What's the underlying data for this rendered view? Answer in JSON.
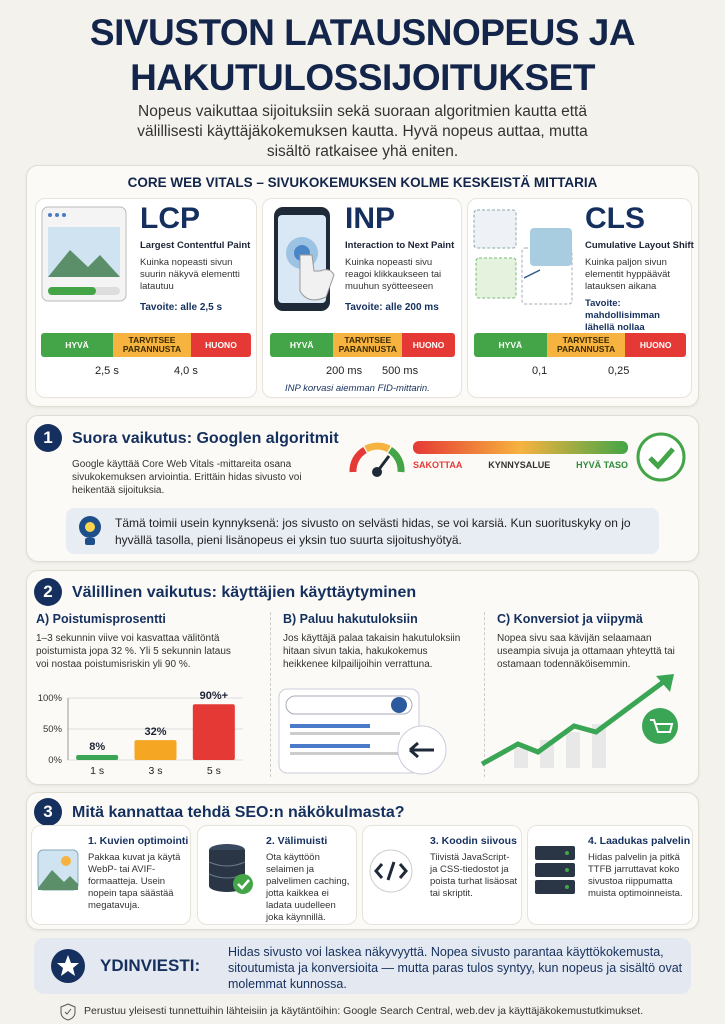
{
  "header": {
    "title": "SIVUSTON LATAUSNOPEUS JA HAKUTULOSSIJOITUKSET",
    "subtitle": "Nopeus vaikuttaa sijoituksiin sekä suoraan algoritmien kautta että välillisesti käyttäjäkokemuksen kautta. Hyvä nopeus auttaa, mutta sisältö ratkaisee yhä eniten."
  },
  "core_web_vitals": {
    "heading": "CORE WEB VITALS – SIVUKOKEMUKSEN KOLME KESKEISTÄ MITTARIA",
    "scale_labels": [
      "HYVÄ",
      "TARVITSEE PARANNUSTA",
      "HUONO"
    ],
    "metrics": [
      {
        "acronym": "LCP",
        "name": "Largest Contentful Paint",
        "description": "Kuinka nopeasti sivun suurin näkyvä elementti latautuu",
        "target": "Tavoite: alle 2,5 s",
        "thresholds": [
          "2,5 s",
          "4,0 s"
        ]
      },
      {
        "acronym": "INP",
        "name": "Interaction to Next Paint",
        "description": "Kuinka nopeasti sivu reagoi klikkaukseen tai muuhun syötteeseen",
        "target": "Tavoite: alle 200 ms",
        "thresholds": [
          "200 ms",
          "500 ms"
        ],
        "note": "INP korvasi aiemman FID-mittarin."
      },
      {
        "acronym": "CLS",
        "name": "Cumulative Layout Shift",
        "description": "Kuinka paljon sivun elementit hyppäävät latauksen aikana",
        "target": "Tavoite: mahdollisimman lähellä nollaa",
        "thresholds": [
          "0,1",
          "0,25"
        ]
      }
    ]
  },
  "direct_impact": {
    "number": "1",
    "heading": "Suora vaikutus: Googlen algoritmit",
    "text": "Google käyttää Core Web Vitals -mittareita osana sivukokemuksen arviointia. Erittäin hidas sivusto voi heikentää sijoituksia.",
    "scale_labels": [
      "SAKOTTAA",
      "KYNNYSALUE",
      "HYVÄ TASO"
    ],
    "tip": "Tämä toimii usein kynnyksenä: jos sivusto on selvästi hidas, se voi karsiä. Kun suorituskyky on jo hyvällä tasolla, pieni lisänopeus ei yksin tuo suurta sijoitushyötyä."
  },
  "indirect_impact": {
    "number": "2",
    "heading": "Välillinen vaikutus: käyttäjien käyttäytyminen",
    "columns": [
      {
        "title": "A) Poistumisprosentti",
        "text": "1–3 sekunnin viive voi kasvattaa välitöntä poistumista jopa 32 %. Yli 5 sekunnin lataus voi nostaa poistumisriskin yli 90 %."
      },
      {
        "title": "B) Paluu hakutuloksiin",
        "text": "Jos käyttäjä palaa takaisin hakutuloksiin hitaan sivun takia, hakukokemus heikkenee kilpailijoihin verrattuna."
      },
      {
        "title": "C) Konversiot ja viipymä",
        "text": "Nopea sivu saa kävijän selaamaan useampia sivuja ja ottamaan yhteyttä tai ostamaan todennäköisemmin."
      }
    ]
  },
  "chart_data": {
    "type": "bar",
    "categories": [
      "1 s",
      "3 s",
      "5 s"
    ],
    "values": [
      8,
      32,
      90
    ],
    "value_labels": [
      "8%",
      "32%",
      "90%+"
    ],
    "colors": [
      "#3aa655",
      "#f5a623",
      "#e53935"
    ],
    "ylim": [
      0,
      100
    ],
    "yticks": [
      {
        "value": 0,
        "label": "0%"
      },
      {
        "value": 50,
        "label": "50%"
      },
      {
        "value": 100,
        "label": "100%"
      }
    ]
  },
  "seo_tips": {
    "number": "3",
    "heading": "Mitä kannattaa tehdä SEO:n näkökulmasta?",
    "items": [
      {
        "title": "1. Kuvien optimointi",
        "text": "Pakkaa kuvat ja käytä WebP- tai AVIF-formaatteja. Usein nopein tapa säästää megatavuja."
      },
      {
        "title": "2. Välimuisti",
        "text": "Ota käyttöön selaimen ja palvelimen caching, jotta kaikkea ei ladata uudelleen joka käynnillä."
      },
      {
        "title": "3. Koodin siivous",
        "text": "Tiivistä JavaScript- ja CSS-tiedostot ja poista turhat lisäosat tai skriptit."
      },
      {
        "title": "4. Laadukas palvelin",
        "text": "Hidas palvelin ja pitkä TTFB jarruttavat koko sivustoa riippumatta muista optimoinneista."
      }
    ]
  },
  "key_message": {
    "label": "YDINVIESTI:",
    "text": "Hidas sivusto voi laskea näkyvyyttä. Nopea sivusto parantaa käyttökokemusta, sitoutumista ja konversioita — mutta paras tulos syntyy, kun nopeus ja sisältö ovat molemmat kunnossa."
  },
  "footer": "Perustuu yleisesti tunnettuihin lähteisiin ja käytäntöihin: Google Search Central, web.dev ja käyttäjäkokemustutkimukset."
}
